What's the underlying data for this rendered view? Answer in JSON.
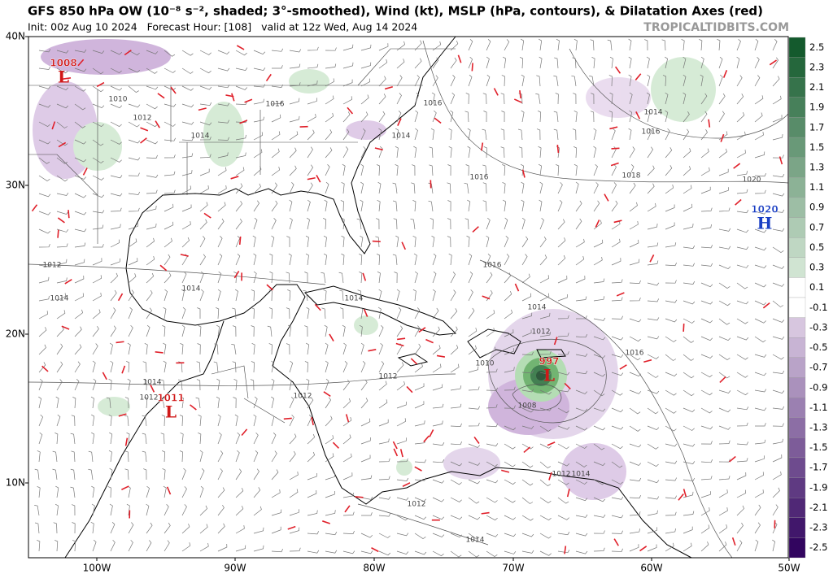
{
  "header": {
    "title": "GFS 850 hPa OW (10⁻⁸ s⁻², shaded; 3°-smoothed), Wind (kt), MSLP (hPa, contours), & Dilatation Axes (red)",
    "init_line": "Init: 00z Aug 10 2024   Forecast Hour: [108]   valid at 12z Wed, Aug 14 2024",
    "credit": "TROPICALTIDBITS.COM"
  },
  "axes": {
    "lat_labels": [
      "40N",
      "30N",
      "20N",
      "10N"
    ],
    "lon_labels": [
      "100W",
      "90W",
      "80W",
      "70W",
      "60W",
      "50W"
    ]
  },
  "colorbar": {
    "ticks": [
      2.5,
      2.3,
      2.1,
      1.9,
      1.7,
      1.5,
      1.3,
      1.1,
      0.9,
      0.7,
      0.5,
      0.3,
      0.1,
      -0.1,
      -0.3,
      -0.5,
      -0.7,
      -0.9,
      -1.1,
      -1.3,
      -1.5,
      -1.7,
      -1.9,
      -2.1,
      -2.3,
      -2.5
    ]
  },
  "centers": [
    {
      "pressure": "1008",
      "symbol": "L"
    },
    {
      "pressure": "997",
      "symbol": "L"
    },
    {
      "pressure": "1011",
      "symbol": "L"
    },
    {
      "pressure": "1020",
      "symbol": "H"
    }
  ],
  "contour_labels": [
    "1010",
    "1012",
    "1014",
    "1016",
    "1016",
    "1014",
    "1014",
    "1016",
    "1016",
    "1018",
    "1020",
    "1016",
    "1012",
    "1014",
    "1014",
    "1014",
    "1014",
    "1012",
    "1016",
    "1010",
    "1012",
    "1014",
    "1012",
    "1012",
    "1008",
    "1012",
    "1014",
    "1012",
    "1014"
  ]
}
